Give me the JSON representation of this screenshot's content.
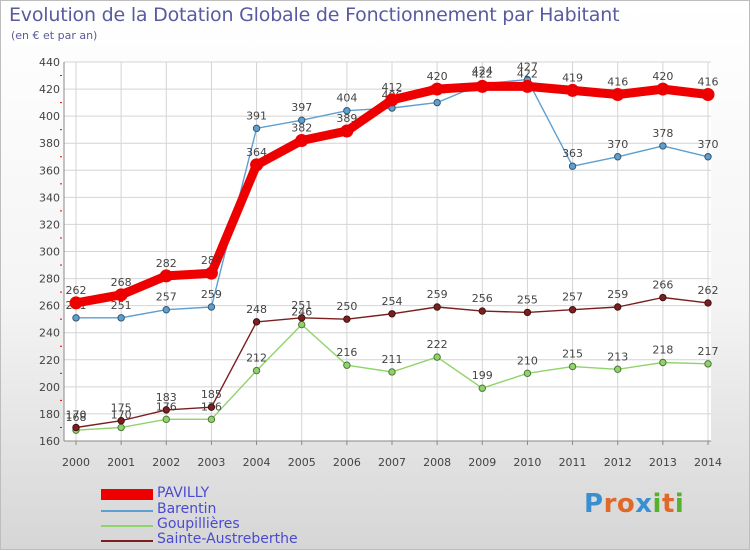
{
  "title": "Evolution de la Dotation Globale de Fonctionnement par Habitant",
  "subtitle": "(en € et par an)",
  "logo": {
    "letters": [
      "P",
      "r",
      "o",
      "x",
      "i",
      "t",
      "i"
    ],
    "colors": [
      "#3a8fd0",
      "#e0692a",
      "#e0692a",
      "#3a8fd0",
      "#58b030",
      "#e0692a",
      "#58b030"
    ]
  },
  "chart_data": {
    "type": "line",
    "title": "Evolution de la Dotation Globale de Fonctionnement par Habitant",
    "ylabel": "(en € et par an)",
    "xlabel": "",
    "x": [
      "2000",
      "2001",
      "2002",
      "2003",
      "2004",
      "2005",
      "2006",
      "2007",
      "2008",
      "2009",
      "2010",
      "2011",
      "2012",
      "2013",
      "2014"
    ],
    "ylim": [
      160,
      440
    ],
    "yticks": [
      "160",
      "180",
      "200",
      "220",
      "240",
      "260",
      "280",
      "300",
      "320",
      "340",
      "360",
      "380",
      "400",
      "420",
      "440"
    ],
    "grid": true,
    "legend_position": "bottom-left",
    "series": [
      {
        "name": "PAVILLY",
        "color": "#ee0000",
        "emphasis": true,
        "values": [
          262,
          268,
          282,
          284,
          364,
          382,
          389,
          412,
          420,
          422,
          422,
          419,
          416,
          420,
          416
        ],
        "labels": [
          "262",
          "268",
          "282",
          "284",
          "364",
          "382",
          "389",
          "412",
          "420",
          "422",
          "422",
          "419",
          "416",
          "420",
          "416"
        ]
      },
      {
        "name": "Barentin",
        "color": "#5f9fd0",
        "values": [
          251,
          251,
          257,
          259,
          391,
          397,
          404,
          406,
          410,
          424,
          427,
          363,
          370,
          378,
          370
        ],
        "labels": [
          "251",
          "251",
          "257",
          "259",
          "391",
          "397",
          "404",
          "406",
          "410",
          "424",
          "427",
          "363",
          "370",
          "378",
          "370"
        ]
      },
      {
        "name": "Goupillières",
        "color": "#8fd46a",
        "values": [
          168,
          170,
          176,
          176,
          212,
          246,
          216,
          211,
          222,
          199,
          210,
          215,
          213,
          218,
          217
        ],
        "labels": [
          "168",
          "170",
          "176",
          "176",
          "212",
          "246",
          "216",
          "211",
          "222",
          "199",
          "210",
          "215",
          "213",
          "218",
          "217"
        ]
      },
      {
        "name": "Sainte-Austreberthe",
        "color": "#7a2020",
        "values": [
          170,
          175,
          183,
          185,
          248,
          251,
          250,
          254,
          259,
          256,
          255,
          257,
          259,
          266,
          262
        ],
        "labels": [
          "170",
          "175",
          "183",
          "185",
          "248",
          "251",
          "250",
          "254",
          "259",
          "256",
          "255",
          "257",
          "259",
          "266",
          "262"
        ]
      }
    ]
  }
}
